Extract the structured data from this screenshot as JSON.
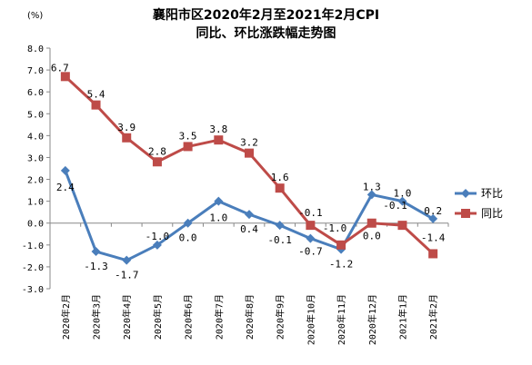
{
  "chart_data": {
    "type": "line",
    "title_line1": "襄阳市区2020年2月至2021年2月CPI",
    "title_line2": "同比、环比涨跌幅走势图",
    "unit": "(%)",
    "categories": [
      "2020年2月",
      "2020年3月",
      "2020年4月",
      "2020年5月",
      "2020年6月",
      "2020年7月",
      "2020年8月",
      "2020年9月",
      "2020年10月",
      "2020年11月",
      "2020年12月",
      "2021年1月",
      "2021年2月"
    ],
    "ylim": [
      -3.0,
      8.0
    ],
    "yticks": [
      "8.0",
      "7.0",
      "6.0",
      "5.0",
      "4.0",
      "3.0",
      "2.0",
      "1.0",
      "0.0",
      "-1.0",
      "-2.0",
      "-3.0"
    ],
    "legend_position": "right",
    "series": [
      {
        "name": "环比",
        "color": "#4a7ebb",
        "marker": "diamond",
        "values": [
          2.4,
          -1.3,
          -1.7,
          -1.0,
          0.0,
          1.0,
          0.4,
          -0.1,
          -0.7,
          -1.2,
          1.3,
          1.0,
          0.2
        ],
        "labels": [
          "2.4",
          "-1.3",
          "-1.7",
          "-1.0",
          "0.0",
          "1.0",
          "0.4",
          "-0.1",
          "-0.7",
          "-1.2",
          "1.3",
          "1.0",
          "0.2"
        ]
      },
      {
        "name": "同比",
        "color": "#be4b48",
        "marker": "square",
        "values": [
          6.7,
          5.4,
          3.9,
          2.8,
          3.5,
          3.8,
          3.2,
          1.6,
          -0.1,
          -1.0,
          0.0,
          -0.1,
          -1.4
        ],
        "labels": [
          "6.7",
          "5.4",
          "3.9",
          "2.8",
          "3.5",
          "3.8",
          "3.2",
          "1.6",
          "-0.1",
          "-1.0",
          "0.0",
          "-0.1",
          "-1.4"
        ]
      }
    ]
  }
}
